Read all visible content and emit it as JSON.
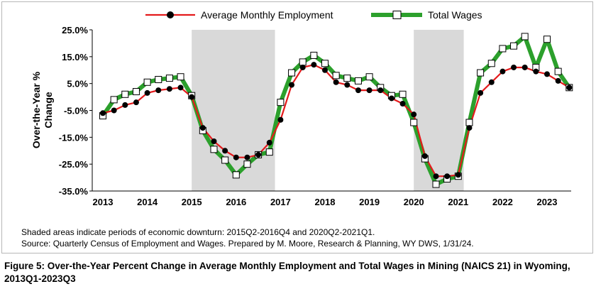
{
  "chart_data": {
    "type": "line",
    "title": "",
    "ylabel": "Over-the-Year % Change",
    "xlabel": "",
    "ylim": [
      -35,
      25
    ],
    "yticks": [
      "25.0%",
      "15.0%",
      "5.0%",
      "-5.0%",
      "-15.0%",
      "-25.0%",
      "-35.0%"
    ],
    "ytick_values": [
      25,
      15,
      5,
      -5,
      -15,
      -25,
      -35
    ],
    "xtick_labels": [
      "2013",
      "2014",
      "2015",
      "2016",
      "2017",
      "2018",
      "2019",
      "2020",
      "2021",
      "2022",
      "2023"
    ],
    "grid": false,
    "legend_position": "top",
    "quarters": [
      "2013Q1",
      "2013Q2",
      "2013Q3",
      "2013Q4",
      "2014Q1",
      "2014Q2",
      "2014Q3",
      "2014Q4",
      "2015Q1",
      "2015Q2",
      "2015Q3",
      "2015Q4",
      "2016Q1",
      "2016Q2",
      "2016Q3",
      "2016Q4",
      "2017Q1",
      "2017Q2",
      "2017Q3",
      "2017Q4",
      "2018Q1",
      "2018Q2",
      "2018Q3",
      "2018Q4",
      "2019Q1",
      "2019Q2",
      "2019Q3",
      "2019Q4",
      "2020Q1",
      "2020Q2",
      "2020Q3",
      "2020Q4",
      "2021Q1",
      "2021Q2",
      "2021Q3",
      "2021Q4",
      "2022Q1",
      "2022Q2",
      "2022Q3",
      "2022Q4",
      "2023Q1",
      "2023Q2",
      "2023Q3"
    ],
    "shaded_periods": [
      [
        "2015Q2",
        "2016Q4"
      ],
      [
        "2020Q2",
        "2021Q1"
      ]
    ],
    "series": [
      {
        "name": "Average Monthly Employment",
        "color": "#e41a1c",
        "marker": "circle",
        "values": [
          -6.0,
          -5.0,
          -3.0,
          -2.0,
          1.5,
          2.5,
          3.0,
          3.5,
          0.0,
          -11.5,
          -16.5,
          -20.0,
          -22.5,
          -22.5,
          -21.5,
          -17.0,
          -8.5,
          4.5,
          11.0,
          12.0,
          10.0,
          5.5,
          4.5,
          2.5,
          2.5,
          2.5,
          -0.5,
          -2.5,
          -6.5,
          -22.0,
          -29.5,
          -29.5,
          -29.0,
          -11.5,
          1.5,
          5.5,
          9.5,
          11.0,
          11.0,
          9.5,
          8.5,
          6.0,
          3.5
        ]
      },
      {
        "name": "Total Wages",
        "color": "#2ca02c",
        "marker": "square",
        "values": [
          -7.0,
          -1.0,
          1.0,
          2.0,
          5.5,
          6.5,
          7.0,
          7.5,
          0.5,
          -12.5,
          -19.5,
          -23.5,
          -29.0,
          -25.0,
          -21.5,
          -20.5,
          -2.0,
          9.0,
          13.0,
          15.5,
          12.5,
          8.0,
          7.0,
          6.0,
          7.5,
          3.5,
          0.5,
          1.0,
          -9.5,
          -23.0,
          -32.5,
          -30.5,
          -29.5,
          -9.5,
          9.0,
          12.5,
          18.0,
          19.0,
          22.5,
          11.0,
          21.5,
          9.5,
          3.5
        ]
      }
    ]
  },
  "notes": {
    "shading": "Shaded areas indicate periods of economic downturn: 2015Q2-2016Q4 and 2020Q2-2021Q1.",
    "source": "Source: Quarterly Census of Employment and Wages. Prepared by M. Moore, Research & Planning, WY DWS, 1/31/24."
  },
  "caption": "Figure 5: Over-the-Year Percent Change in Average Monthly Employment and Total Wages in Mining (NAICS 21) in Wyoming, 2013Q1-2023Q3"
}
